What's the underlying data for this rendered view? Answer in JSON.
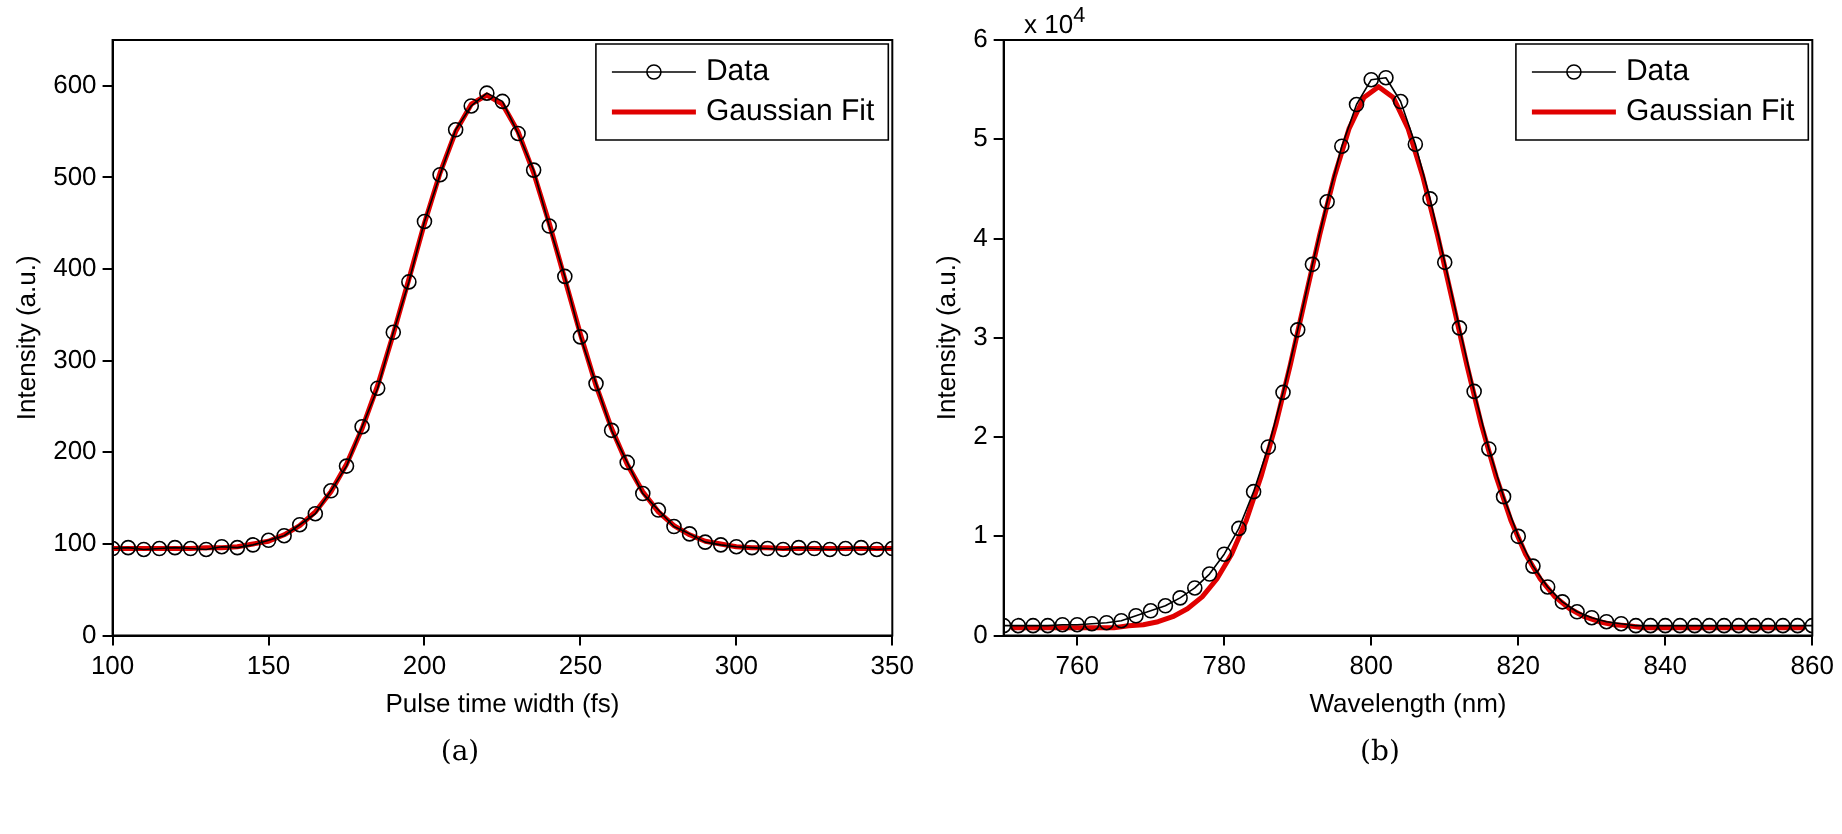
{
  "chart_data": [
    {
      "type": "line",
      "xlabel": "Pulse time width (fs)",
      "ylabel": "Intensity (a.u.)",
      "xlim": [
        100,
        350
      ],
      "xticks": [
        100,
        150,
        200,
        250,
        300,
        350
      ],
      "ylim": [
        0,
        650
      ],
      "yticks": [
        0,
        100,
        200,
        300,
        400,
        500,
        600
      ],
      "legend": "top right",
      "annotations": [
        "(a)"
      ],
      "series": [
        {
          "name": "Data",
          "type": "line",
          "color": "#000000",
          "marker": "circle",
          "line_style": "solid",
          "x": [
            100,
            105,
            110,
            115,
            120,
            125,
            130,
            135,
            140,
            145,
            150,
            155,
            160,
            165,
            170,
            175,
            180,
            185,
            190,
            195,
            200,
            205,
            210,
            215,
            220,
            225,
            230,
            235,
            240,
            245,
            250,
            255,
            260,
            265,
            270,
            275,
            280,
            285,
            290,
            295,
            300,
            305,
            310,
            315,
            320,
            325,
            330,
            335,
            340,
            345,
            350
          ],
          "values": [
            95,
            96,
            94,
            95,
            96,
            95,
            94,
            97,
            96,
            99,
            104,
            109,
            121,
            133,
            158,
            185,
            228,
            270,
            331,
            386,
            452,
            503,
            552,
            578,
            592,
            583,
            548,
            508,
            447,
            392,
            326,
            275,
            224,
            189,
            155,
            137,
            119,
            111,
            102,
            99,
            97,
            96,
            95,
            94,
            96,
            95,
            94,
            95,
            96,
            94,
            95
          ]
        },
        {
          "name": "Gaussian Fit",
          "type": "line",
          "color": "#e00000",
          "marker": "none",
          "line_style": "solid",
          "x": [
            100,
            105,
            110,
            115,
            120,
            125,
            130,
            135,
            140,
            145,
            150,
            155,
            160,
            165,
            170,
            175,
            180,
            185,
            190,
            195,
            200,
            205,
            210,
            215,
            220,
            225,
            230,
            235,
            240,
            245,
            250,
            255,
            260,
            265,
            270,
            275,
            280,
            285,
            290,
            295,
            300,
            305,
            310,
            315,
            320,
            325,
            330,
            335,
            340,
            345,
            350
          ],
          "values": [
            95,
            95,
            95,
            95,
            95,
            95,
            96,
            96,
            97,
            100,
            103,
            110,
            120,
            135,
            157,
            187,
            226,
            273,
            329,
            389,
            450,
            505,
            550,
            580,
            590,
            580,
            550,
            505,
            450,
            389,
            329,
            273,
            226,
            187,
            157,
            135,
            120,
            110,
            103,
            100,
            97,
            96,
            96,
            95,
            95,
            95,
            95,
            95,
            95,
            95,
            95
          ]
        }
      ]
    },
    {
      "type": "line",
      "xlabel": "Wavelength (nm)",
      "ylabel": "Intensity (a.u.)",
      "xlim": [
        750,
        860
      ],
      "xticks": [
        760,
        780,
        800,
        820,
        840,
        860
      ],
      "ylim": [
        0,
        6
      ],
      "yticks": [
        0,
        1,
        2,
        3,
        4,
        5,
        6
      ],
      "legend": "top right",
      "annotations": [
        "x 10$^{4}$",
        "(b)"
      ],
      "series": [
        {
          "name": "Data",
          "type": "line",
          "color": "#000000",
          "marker": "circle",
          "line_style": "solid",
          "x": [
            750,
            752,
            754,
            756,
            758,
            760,
            762,
            764,
            766,
            768,
            770,
            772,
            774,
            776,
            778,
            780,
            782,
            784,
            786,
            788,
            790,
            792,
            794,
            796,
            798,
            800,
            802,
            804,
            806,
            808,
            810,
            812,
            814,
            816,
            818,
            820,
            822,
            824,
            826,
            828,
            830,
            832,
            834,
            836,
            838,
            840,
            842,
            844,
            846,
            848,
            850,
            852,
            854,
            856,
            858,
            860
          ],
          "values": [
            0.1,
            0.1,
            0.1,
            0.1,
            0.11,
            0.11,
            0.12,
            0.13,
            0.15,
            0.2,
            0.25,
            0.3,
            0.38,
            0.48,
            0.62,
            0.82,
            1.08,
            1.45,
            1.9,
            2.45,
            3.08,
            3.74,
            4.37,
            4.93,
            5.35,
            5.6,
            5.62,
            5.38,
            4.95,
            4.4,
            3.76,
            3.1,
            2.46,
            1.88,
            1.4,
            1.0,
            0.7,
            0.49,
            0.34,
            0.24,
            0.18,
            0.14,
            0.12,
            0.1,
            0.1,
            0.1,
            0.1,
            0.1,
            0.1,
            0.1,
            0.1,
            0.1,
            0.1,
            0.1,
            0.1,
            0.1
          ]
        },
        {
          "name": "Gaussian Fit",
          "type": "line",
          "color": "#e00000",
          "marker": "none",
          "line_style": "solid",
          "x": [
            751,
            753,
            755,
            757,
            759,
            761,
            763,
            765,
            767,
            769,
            771,
            773,
            775,
            777,
            779,
            781,
            783,
            785,
            787,
            789,
            791,
            793,
            795,
            797,
            799,
            801,
            803,
            805,
            807,
            809,
            811,
            813,
            815,
            817,
            819,
            821,
            823,
            825,
            827,
            829,
            831,
            833,
            835,
            837,
            839,
            841,
            843,
            845,
            847,
            849,
            851,
            853,
            855,
            857,
            859
          ],
          "values": [
            0.08,
            0.08,
            0.08,
            0.08,
            0.08,
            0.08,
            0.08,
            0.08,
            0.1,
            0.11,
            0.14,
            0.19,
            0.27,
            0.39,
            0.57,
            0.82,
            1.16,
            1.6,
            2.12,
            2.73,
            3.39,
            4.04,
            4.63,
            5.11,
            5.42,
            5.53,
            5.42,
            5.11,
            4.63,
            4.04,
            3.39,
            2.73,
            2.12,
            1.6,
            1.16,
            0.82,
            0.57,
            0.39,
            0.27,
            0.19,
            0.14,
            0.11,
            0.1,
            0.08,
            0.08,
            0.08,
            0.08,
            0.08,
            0.08,
            0.08,
            0.08,
            0.08,
            0.08,
            0.08,
            0.08
          ]
        }
      ]
    }
  ]
}
